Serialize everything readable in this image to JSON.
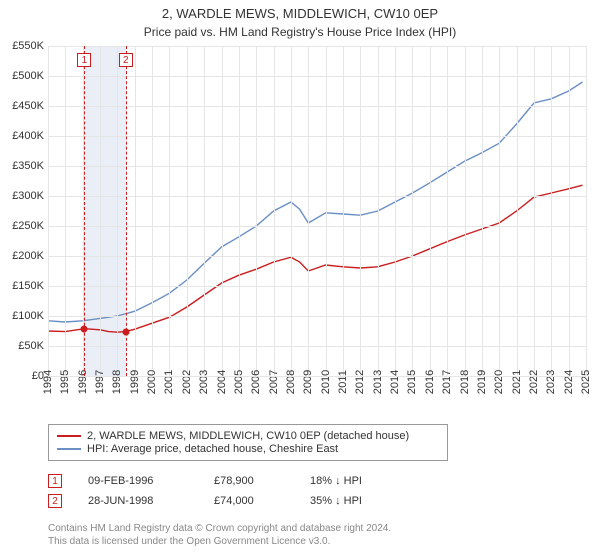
{
  "title": "2, WARDLE MEWS, MIDDLEWICH, CW10 0EP",
  "subtitle": "Price paid vs. HM Land Registry's House Price Index (HPI)",
  "chart": {
    "type": "line",
    "background_color": "#ffffff",
    "grid_color": "#e5e5e5",
    "x_start": 1994,
    "x_end": 2025,
    "x_ticks": [
      1994,
      1995,
      1996,
      1997,
      1998,
      1999,
      2000,
      2001,
      2002,
      2003,
      2004,
      2005,
      2006,
      2007,
      2008,
      2009,
      2010,
      2011,
      2012,
      2013,
      2014,
      2015,
      2016,
      2017,
      2018,
      2019,
      2020,
      2021,
      2022,
      2023,
      2024,
      2025
    ],
    "y_min": 0,
    "y_max": 550000,
    "y_ticks": [
      0,
      50000,
      100000,
      150000,
      200000,
      250000,
      300000,
      350000,
      400000,
      450000,
      500000,
      550000
    ],
    "y_tick_labels": [
      "£0",
      "£50K",
      "£100K",
      "£150K",
      "£200K",
      "£250K",
      "£300K",
      "£350K",
      "£400K",
      "£450K",
      "£500K",
      "£550K"
    ],
    "highlight_band": {
      "from": 1996.1,
      "to": 1998.48,
      "color": "#eaeef7"
    },
    "series": [
      {
        "name": "2, WARDLE MEWS, MIDDLEWICH, CW10 0EP (detached house)",
        "color": "#cb1d1d",
        "line_width": 1.4,
        "points": [
          [
            1994.0,
            75000
          ],
          [
            1995.0,
            74000
          ],
          [
            1996.1,
            78900
          ],
          [
            1996.5,
            78000
          ],
          [
            1997.0,
            77000
          ],
          [
            1997.5,
            74000
          ],
          [
            1998.0,
            73000
          ],
          [
            1998.47,
            74000
          ],
          [
            1999.0,
            78000
          ],
          [
            2000.0,
            88000
          ],
          [
            2001.0,
            98000
          ],
          [
            2002.0,
            115000
          ],
          [
            2003.0,
            135000
          ],
          [
            2004.0,
            155000
          ],
          [
            2005.0,
            168000
          ],
          [
            2006.0,
            178000
          ],
          [
            2007.0,
            190000
          ],
          [
            2008.0,
            198000
          ],
          [
            2008.5,
            190000
          ],
          [
            2009.0,
            175000
          ],
          [
            2010.0,
            185000
          ],
          [
            2011.0,
            182000
          ],
          [
            2012.0,
            180000
          ],
          [
            2013.0,
            182000
          ],
          [
            2014.0,
            190000
          ],
          [
            2015.0,
            200000
          ],
          [
            2016.0,
            212000
          ],
          [
            2017.0,
            224000
          ],
          [
            2018.0,
            235000
          ],
          [
            2019.0,
            245000
          ],
          [
            2020.0,
            255000
          ],
          [
            2021.0,
            275000
          ],
          [
            2022.0,
            298000
          ],
          [
            2023.0,
            305000
          ],
          [
            2024.0,
            312000
          ],
          [
            2024.8,
            318000
          ]
        ]
      },
      {
        "name": "HPI: Average price, detached house, Cheshire East",
        "color": "#6a8fc5",
        "line_width": 1.4,
        "points": [
          [
            1994.0,
            92000
          ],
          [
            1995.0,
            90000
          ],
          [
            1996.0,
            92000
          ],
          [
            1997.0,
            96000
          ],
          [
            1998.0,
            100000
          ],
          [
            1999.0,
            108000
          ],
          [
            2000.0,
            122000
          ],
          [
            2001.0,
            138000
          ],
          [
            2002.0,
            160000
          ],
          [
            2003.0,
            188000
          ],
          [
            2004.0,
            215000
          ],
          [
            2005.0,
            232000
          ],
          [
            2006.0,
            250000
          ],
          [
            2007.0,
            275000
          ],
          [
            2008.0,
            290000
          ],
          [
            2008.5,
            278000
          ],
          [
            2009.0,
            255000
          ],
          [
            2010.0,
            272000
          ],
          [
            2011.0,
            270000
          ],
          [
            2012.0,
            268000
          ],
          [
            2013.0,
            275000
          ],
          [
            2014.0,
            290000
          ],
          [
            2015.0,
            305000
          ],
          [
            2016.0,
            322000
          ],
          [
            2017.0,
            340000
          ],
          [
            2018.0,
            358000
          ],
          [
            2019.0,
            372000
          ],
          [
            2020.0,
            388000
          ],
          [
            2021.0,
            420000
          ],
          [
            2022.0,
            455000
          ],
          [
            2023.0,
            462000
          ],
          [
            2024.0,
            475000
          ],
          [
            2024.8,
            490000
          ]
        ]
      }
    ],
    "markers": [
      {
        "label": "1",
        "x": 1996.1,
        "y": 78900
      },
      {
        "label": "2",
        "x": 1998.48,
        "y": 74000
      }
    ],
    "marker_dash_color": "#cb1d1d",
    "label_fontsize": 11,
    "title_fontsize": 13
  },
  "legend": {
    "items": [
      {
        "color": "#cb1d1d",
        "label": "2, WARDLE MEWS, MIDDLEWICH, CW10 0EP (detached house)"
      },
      {
        "color": "#6a8fc5",
        "label": "HPI: Average price, detached house, Cheshire East"
      }
    ]
  },
  "info_rows": [
    {
      "marker": "1",
      "date": "09-FEB-1996",
      "price": "£78,900",
      "delta": "18% ↓ HPI"
    },
    {
      "marker": "2",
      "date": "28-JUN-1998",
      "price": "£74,000",
      "delta": "35% ↓ HPI"
    }
  ],
  "footer_line1": "Contains HM Land Registry data © Crown copyright and database right 2024.",
  "footer_line2": "This data is licensed under the Open Government Licence v3.0."
}
